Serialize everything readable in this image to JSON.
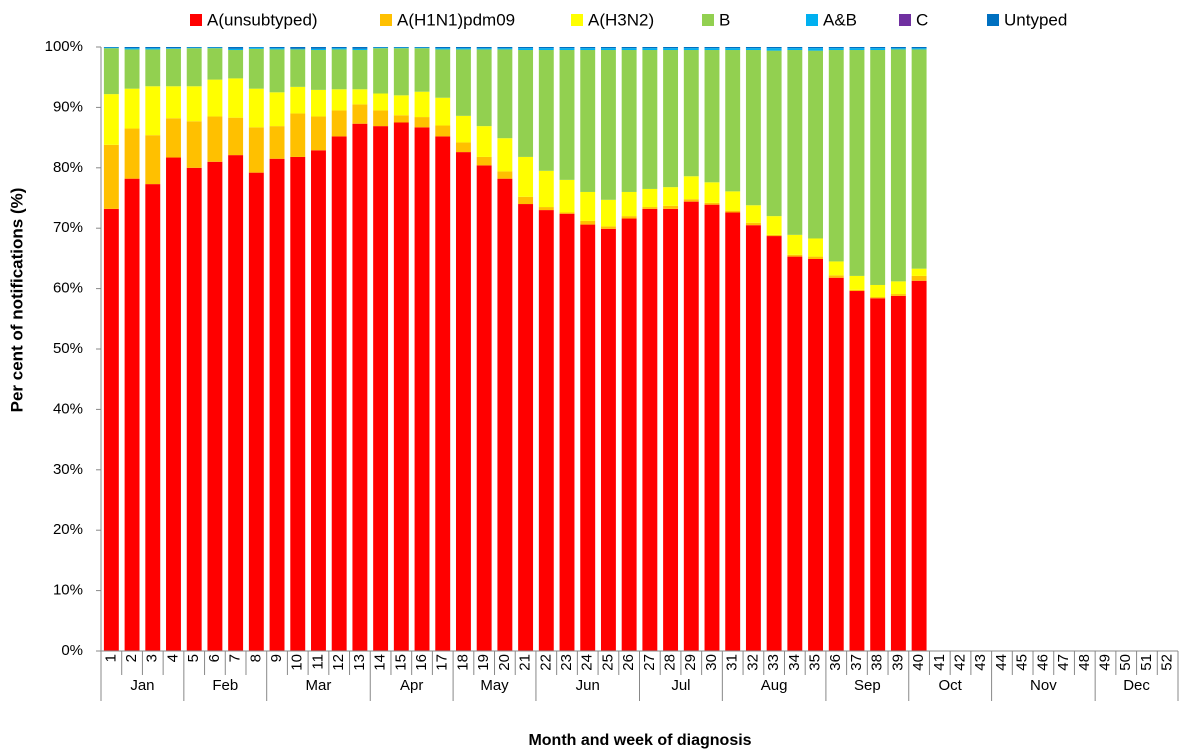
{
  "chart_data": {
    "type": "stacked-bar",
    "y_title": "Per cent of notifications (%)",
    "x_title": "Month and week of diagnosis",
    "legend": "top",
    "categories": [
      "1",
      "2",
      "3",
      "4",
      "5",
      "6",
      "7",
      "8",
      "9",
      "10",
      "11",
      "12",
      "13",
      "14",
      "15",
      "16",
      "17",
      "18",
      "19",
      "20",
      "21",
      "22",
      "23",
      "24",
      "25",
      "26",
      "27",
      "28",
      "29",
      "30",
      "31",
      "32",
      "33",
      "34",
      "35",
      "36",
      "37",
      "38",
      "39",
      "40",
      "41",
      "42",
      "43",
      "44",
      "45",
      "46",
      "47",
      "48",
      "49",
      "50",
      "51",
      "52"
    ],
    "month_groups": [
      {
        "label": "Jan",
        "weeks": 4
      },
      {
        "label": "Feb",
        "weeks": 4
      },
      {
        "label": "Mar",
        "weeks": 5
      },
      {
        "label": "Apr",
        "weeks": 4
      },
      {
        "label": "May",
        "weeks": 4
      },
      {
        "label": "Jun",
        "weeks": 5
      },
      {
        "label": "Jul",
        "weeks": 4
      },
      {
        "label": "Aug",
        "weeks": 5
      },
      {
        "label": "Sep",
        "weeks": 4
      },
      {
        "label": "Oct",
        "weeks": 4
      },
      {
        "label": "Nov",
        "weeks": 5
      },
      {
        "label": "Dec",
        "weeks": 4
      }
    ],
    "ylim": [
      0,
      100
    ],
    "yticks": [
      {
        "value": 0,
        "label": "0%"
      },
      {
        "value": 10,
        "label": "10%"
      },
      {
        "value": 20,
        "label": "20%"
      },
      {
        "value": 30,
        "label": "30%"
      },
      {
        "value": 40,
        "label": "40%"
      },
      {
        "value": 50,
        "label": "50%"
      },
      {
        "value": 60,
        "label": "60%"
      },
      {
        "value": 70,
        "label": "70%"
      },
      {
        "value": 80,
        "label": "80%"
      },
      {
        "value": 90,
        "label": "90%"
      },
      {
        "value": 100,
        "label": "100%"
      }
    ],
    "series": [
      {
        "name": "A(unsubtyped)",
        "color": "#ff0000",
        "values": [
          73.2,
          78.2,
          77.3,
          81.7,
          80.0,
          81.0,
          82.1,
          79.2,
          81.5,
          81.8,
          82.9,
          85.2,
          87.3,
          86.9,
          87.5,
          86.7,
          85.2,
          82.6,
          80.4,
          78.2,
          74.0,
          73.0,
          72.4,
          70.6,
          69.9,
          71.6,
          73.2,
          73.2,
          74.4,
          73.9,
          72.6,
          70.5,
          68.7,
          65.3,
          64.9,
          61.8,
          59.6,
          58.4,
          58.8,
          61.3,
          null,
          null,
          null,
          null,
          null,
          null,
          null,
          null,
          null,
          null,
          null,
          null
        ]
      },
      {
        "name": "A(H1N1)pdm09",
        "color": "#ffc000",
        "values": [
          10.6,
          8.3,
          8.1,
          6.5,
          7.7,
          7.5,
          6.2,
          7.5,
          5.4,
          7.2,
          5.6,
          4.3,
          3.2,
          2.6,
          1.2,
          1.7,
          1.8,
          1.6,
          1.4,
          1.2,
          1.2,
          0.5,
          0.2,
          0.6,
          0.4,
          0.4,
          0.3,
          0.5,
          0.4,
          0.3,
          0.3,
          0.4,
          0.2,
          0.3,
          0.4,
          0.4,
          0.2,
          0.2,
          0.3,
          0.8,
          null,
          null,
          null,
          null,
          null,
          null,
          null,
          null,
          null,
          null,
          null,
          null
        ]
      },
      {
        "name": "A(H3N2)",
        "color": "#ffff00",
        "values": [
          8.4,
          6.6,
          8.1,
          5.3,
          5.8,
          6.1,
          6.5,
          6.4,
          5.6,
          4.4,
          4.4,
          3.5,
          2.5,
          2.8,
          3.3,
          4.2,
          4.6,
          4.4,
          5.1,
          5.5,
          6.6,
          6.0,
          5.4,
          4.8,
          4.4,
          4.0,
          3.0,
          3.1,
          3.8,
          3.4,
          3.2,
          2.9,
          3.1,
          3.3,
          3.0,
          2.3,
          2.3,
          2.0,
          2.1,
          1.2,
          null,
          null,
          null,
          null,
          null,
          null,
          null,
          null,
          null,
          null,
          null,
          null
        ]
      },
      {
        "name": "B",
        "color": "#92d050",
        "values": [
          7.6,
          6.5,
          6.1,
          6.2,
          6.3,
          5.2,
          4.7,
          6.6,
          7.1,
          6.2,
          6.6,
          6.6,
          6.5,
          7.5,
          7.8,
          7.2,
          8.0,
          11.0,
          12.7,
          14.7,
          17.7,
          20.0,
          21.5,
          23.5,
          24.8,
          23.5,
          23.0,
          22.7,
          20.9,
          21.9,
          23.4,
          25.7,
          27.4,
          30.6,
          31.1,
          35.0,
          37.4,
          38.9,
          38.4,
          36.3,
          null,
          null,
          null,
          null,
          null,
          null,
          null,
          null,
          null,
          null,
          null,
          null
        ]
      },
      {
        "name": "A&B",
        "color": "#00b0f0",
        "values": [
          0.1,
          0.2,
          0.2,
          0.1,
          0.1,
          0.1,
          0.2,
          0.2,
          0.2,
          0.1,
          0.2,
          0.2,
          0.2,
          0.1,
          0.1,
          0.1,
          0.2,
          0.2,
          0.2,
          0.2,
          0.3,
          0.3,
          0.3,
          0.3,
          0.3,
          0.3,
          0.3,
          0.3,
          0.3,
          0.3,
          0.3,
          0.3,
          0.4,
          0.3,
          0.4,
          0.3,
          0.3,
          0.3,
          0.2,
          0.2,
          null,
          null,
          null,
          null,
          null,
          null,
          null,
          null,
          null,
          null,
          null,
          null
        ]
      },
      {
        "name": "C",
        "color": "#7030a0",
        "values": [
          0,
          0,
          0,
          0,
          0,
          0,
          0,
          0,
          0,
          0,
          0,
          0,
          0,
          0,
          0,
          0,
          0,
          0,
          0,
          0,
          0,
          0,
          0,
          0,
          0,
          0,
          0,
          0,
          0,
          0,
          0,
          0,
          0,
          0,
          0,
          0,
          0,
          0,
          0,
          0,
          null,
          null,
          null,
          null,
          null,
          null,
          null,
          null,
          null,
          null,
          null,
          null
        ]
      },
      {
        "name": "Untyped",
        "color": "#0070c0",
        "values": [
          0.1,
          0.2,
          0.2,
          0.2,
          0.1,
          0.1,
          0.3,
          0.1,
          0.2,
          0.3,
          0.3,
          0.2,
          0.3,
          0.1,
          0.1,
          0.1,
          0.2,
          0.2,
          0.2,
          0.2,
          0.2,
          0.2,
          0.2,
          0.2,
          0.2,
          0.2,
          0.2,
          0.2,
          0.2,
          0.2,
          0.2,
          0.2,
          0.2,
          0.2,
          0.2,
          0.2,
          0.2,
          0.2,
          0.2,
          0.2,
          null,
          null,
          null,
          null,
          null,
          null,
          null,
          null,
          null,
          null,
          null,
          null
        ]
      }
    ]
  }
}
